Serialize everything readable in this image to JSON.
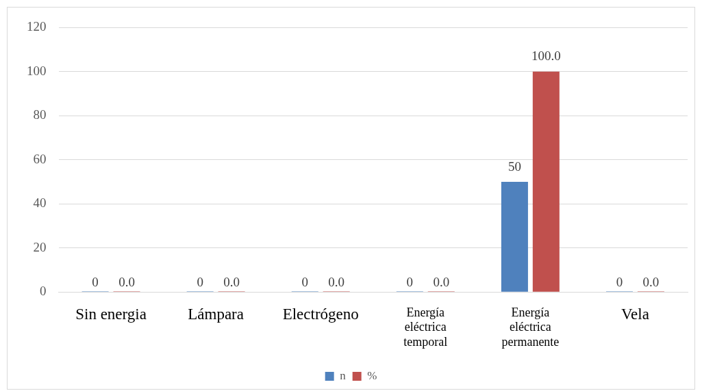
{
  "chart_data": {
    "type": "bar",
    "categories": [
      "Sin energia",
      "Lámpara",
      "Electrógeno",
      "Energía eléctrica temporal",
      "Energía eléctrica permanente",
      "Vela"
    ],
    "series": [
      {
        "name": "n",
        "color": "#4f81bd",
        "values": [
          0,
          0,
          0,
          0,
          50,
          0
        ],
        "value_labels": [
          "0",
          "0",
          "0",
          "0",
          "50",
          "0"
        ]
      },
      {
        "name": "%",
        "color": "#c0504d",
        "values": [
          0,
          0,
          0,
          0,
          100,
          0
        ],
        "value_labels": [
          "0.0",
          "0.0",
          "0.0",
          "0.0",
          "100.0",
          "0.0"
        ]
      }
    ],
    "ylim": [
      0,
      120
    ],
    "yticks": [
      0,
      20,
      40,
      60,
      80,
      100,
      120
    ],
    "grid": "y",
    "legend": "bottom"
  }
}
